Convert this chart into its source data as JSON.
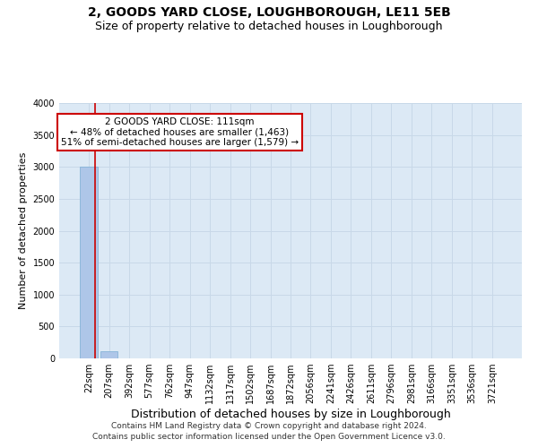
{
  "title": "2, GOODS YARD CLOSE, LOUGHBOROUGH, LE11 5EB",
  "subtitle": "Size of property relative to detached houses in Loughborough",
  "xlabel": "Distribution of detached houses by size in Loughborough",
  "ylabel": "Number of detached properties",
  "footer_line1": "Contains HM Land Registry data © Crown copyright and database right 2024.",
  "footer_line2": "Contains public sector information licensed under the Open Government Licence v3.0.",
  "categories": [
    "22sqm",
    "207sqm",
    "392sqm",
    "577sqm",
    "762sqm",
    "947sqm",
    "1132sqm",
    "1317sqm",
    "1502sqm",
    "1687sqm",
    "1872sqm",
    "2056sqm",
    "2241sqm",
    "2426sqm",
    "2611sqm",
    "2796sqm",
    "2981sqm",
    "3166sqm",
    "3351sqm",
    "3536sqm",
    "3721sqm"
  ],
  "values": [
    3000,
    110,
    5,
    2,
    2,
    2,
    1,
    1,
    1,
    1,
    1,
    0,
    0,
    0,
    0,
    0,
    0,
    0,
    0,
    0,
    0
  ],
  "bar_color": "#aec6e8",
  "bar_edge_color": "#7aadd4",
  "grid_color": "#c8d8e8",
  "background_color": "#dce9f5",
  "ylim": [
    0,
    4000
  ],
  "yticks": [
    0,
    500,
    1000,
    1500,
    2000,
    2500,
    3000,
    3500,
    4000
  ],
  "annotation_text_line1": "2 GOODS YARD CLOSE: 111sqm",
  "annotation_text_line2": "← 48% of detached houses are smaller (1,463)",
  "annotation_text_line3": "51% of semi-detached houses are larger (1,579) →",
  "annotation_box_color": "#ffffff",
  "annotation_box_edge": "#cc0000",
  "red_line_color": "#cc0000",
  "title_fontsize": 10,
  "subtitle_fontsize": 9,
  "annotation_fontsize": 7.5,
  "xlabel_fontsize": 9,
  "ylabel_fontsize": 8,
  "tick_fontsize": 7,
  "footer_fontsize": 6.5
}
